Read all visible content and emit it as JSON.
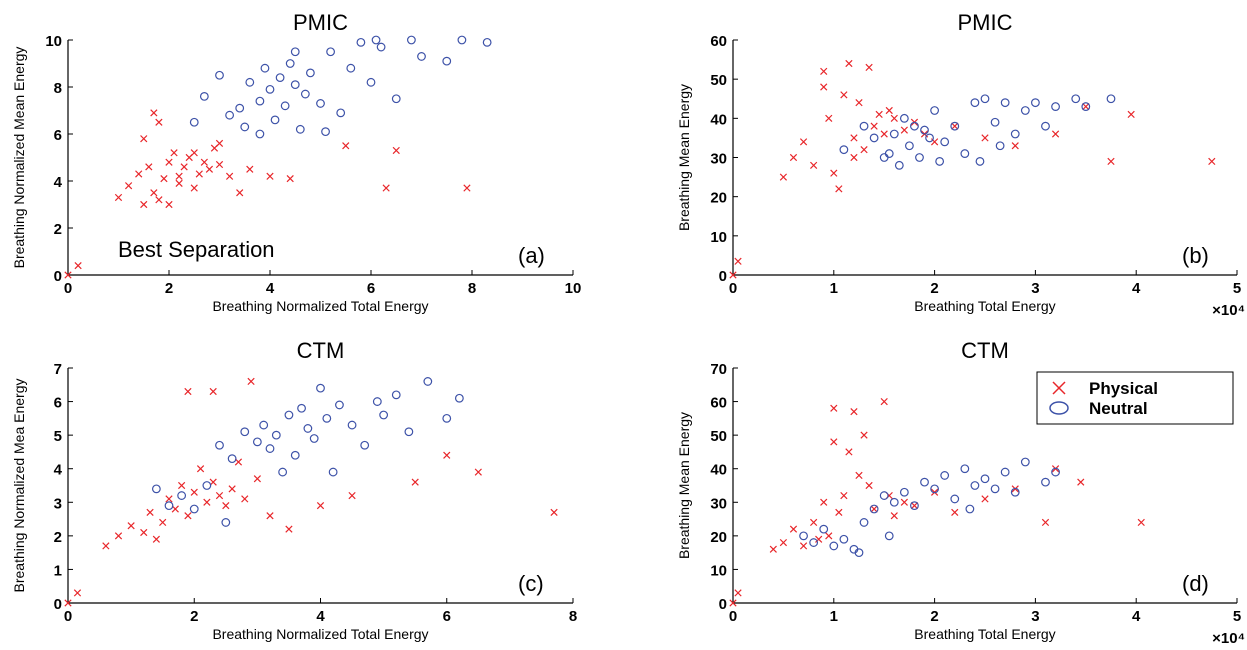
{
  "chart_data": [
    {
      "type": "scatter",
      "title": "PMIC",
      "xlabel": "Breathing Normalized Total Energy",
      "ylabel": "Breathing Normalized Mean Energy",
      "panel_label": "(a)",
      "annotation": "Best Separation",
      "xlim": [
        0,
        10
      ],
      "ylim": [
        0,
        10
      ],
      "xticks": [
        0,
        2,
        4,
        6,
        8,
        10
      ],
      "yticks": [
        0,
        2,
        4,
        6,
        8,
        10
      ],
      "series": [
        {
          "marker": "x",
          "color": "#e8262a",
          "x": [
            0,
            0.2,
            1,
            1.2,
            1.4,
            1.5,
            1.6,
            1.7,
            1.8,
            1.9,
            2,
            2.1,
            2.2,
            2.3,
            2.4,
            2.5,
            2.6,
            2.7,
            2.8,
            2.9,
            3,
            3.2,
            3.4,
            1.5,
            1.8,
            2.2,
            2.5,
            3,
            3.6,
            4,
            4.4,
            5.5,
            6.3,
            6.5,
            7.9,
            1.7,
            2.0
          ],
          "values": [
            0,
            0.4,
            3.3,
            3.8,
            4.3,
            3,
            4.6,
            3.5,
            6.5,
            4.1,
            4.8,
            5.2,
            3.9,
            4.6,
            5,
            5.2,
            4.3,
            4.8,
            4.5,
            5.4,
            4.7,
            4.2,
            3.5,
            5.8,
            3.2,
            4.2,
            3.7,
            5.6,
            4.5,
            4.2,
            4.1,
            5.5,
            3.7,
            5.3,
            3.7,
            6.9,
            3.0
          ]
        },
        {
          "marker": "o",
          "color": "#3d52a8",
          "x": [
            2.5,
            2.7,
            3,
            3.2,
            3.4,
            3.5,
            3.6,
            3.8,
            3.9,
            4,
            4.1,
            4.2,
            4.3,
            4.4,
            4.5,
            4.6,
            4.7,
            4.8,
            5,
            5.2,
            5.4,
            5.6,
            5.8,
            6,
            6.2,
            6.5,
            6.8,
            7,
            7.5,
            7.8,
            8.3,
            4.5,
            3.8,
            5.1,
            6.1
          ],
          "values": [
            6.5,
            7.6,
            8.5,
            6.8,
            7.1,
            6.3,
            8.2,
            7.4,
            8.8,
            7.9,
            6.6,
            8.4,
            7.2,
            9,
            8.1,
            6.2,
            7.7,
            8.6,
            7.3,
            9.5,
            6.9,
            8.8,
            9.9,
            8.2,
            9.7,
            7.5,
            10,
            9.3,
            9.1,
            10,
            9.9,
            9.5,
            6,
            6.1,
            10
          ]
        }
      ]
    },
    {
      "type": "scatter",
      "title": "PMIC",
      "xlabel": "Breathing Total Energy",
      "ylabel": "Breathing Mean Energy",
      "panel_label": "(b)",
      "x_scale_label": "×10⁴",
      "xlim": [
        0,
        5
      ],
      "ylim": [
        0,
        60
      ],
      "xticks": [
        0,
        1,
        2,
        3,
        4,
        5
      ],
      "yticks": [
        0,
        10,
        20,
        30,
        40,
        50,
        60
      ],
      "series": [
        {
          "marker": "x",
          "color": "#e8262a",
          "x": [
            0,
            0.05,
            0.5,
            0.6,
            0.7,
            0.8,
            0.9,
            0.95,
            1,
            1.05,
            1.1,
            1.15,
            1.2,
            1.25,
            1.3,
            1.35,
            1.4,
            1.45,
            1.5,
            1.55,
            1.6,
            1.7,
            1.8,
            1.9,
            2,
            2.2,
            2.5,
            2.8,
            3.2,
            3.5,
            3.75,
            3.95,
            4.75,
            1.2,
            0.9
          ],
          "values": [
            0,
            3.5,
            25,
            30,
            34,
            28,
            52,
            40,
            26,
            22,
            46,
            54,
            35,
            44,
            32,
            53,
            38,
            41,
            36,
            42,
            40,
            37,
            39,
            36,
            34,
            38,
            35,
            33,
            36,
            43,
            29,
            41,
            29,
            30,
            48
          ]
        },
        {
          "marker": "o",
          "color": "#3d52a8",
          "x": [
            1.1,
            1.3,
            1.4,
            1.5,
            1.6,
            1.65,
            1.7,
            1.75,
            1.8,
            1.85,
            1.9,
            1.95,
            2,
            2.05,
            2.1,
            2.2,
            2.3,
            2.4,
            2.5,
            2.6,
            2.7,
            2.8,
            2.9,
            3,
            3.1,
            3.2,
            3.4,
            3.5,
            3.75,
            2.45,
            2.65,
            1.55
          ],
          "values": [
            32,
            38,
            35,
            30,
            36,
            28,
            40,
            33,
            38,
            30,
            37,
            35,
            42,
            29,
            34,
            38,
            31,
            44,
            45,
            39,
            44,
            36,
            42,
            44,
            38,
            43,
            45,
            43,
            45,
            29,
            33,
            31
          ]
        }
      ]
    },
    {
      "type": "scatter",
      "title": "CTM",
      "xlabel": "Breathing Normalized Total Energy",
      "ylabel": "Breathing Normalized Mea Energy",
      "panel_label": "(c)",
      "xlim": [
        0,
        8
      ],
      "ylim": [
        0,
        7
      ],
      "xticks": [
        0,
        2,
        4,
        6,
        8
      ],
      "yticks": [
        0,
        1,
        2,
        3,
        4,
        5,
        6,
        7
      ],
      "series": [
        {
          "marker": "x",
          "color": "#e8262a",
          "x": [
            0,
            0.15,
            0.6,
            0.8,
            1,
            1.2,
            1.3,
            1.4,
            1.5,
            1.6,
            1.7,
            1.8,
            1.9,
            2,
            2.1,
            2.2,
            2.3,
            2.4,
            2.5,
            2.6,
            2.7,
            2.8,
            3,
            3.2,
            3.5,
            4,
            4.5,
            5.5,
            6,
            6.5,
            7.7,
            1.9,
            2.3,
            2.9
          ],
          "values": [
            0,
            0.3,
            1.7,
            2,
            2.3,
            2.1,
            2.7,
            1.9,
            2.4,
            3.1,
            2.8,
            3.5,
            2.6,
            3.3,
            4,
            3,
            3.6,
            3.2,
            2.9,
            3.4,
            4.2,
            3.1,
            3.7,
            2.6,
            2.2,
            2.9,
            3.2,
            3.6,
            4.4,
            3.9,
            2.7,
            6.3,
            6.3,
            6.6
          ]
        },
        {
          "marker": "o",
          "color": "#3d52a8",
          "x": [
            1.4,
            1.6,
            1.8,
            2,
            2.2,
            2.4,
            2.6,
            2.8,
            3,
            3.1,
            3.2,
            3.3,
            3.4,
            3.5,
            3.6,
            3.7,
            3.8,
            3.9,
            4,
            4.1,
            4.2,
            4.3,
            4.5,
            4.7,
            4.9,
            5,
            5.2,
            5.4,
            5.7,
            6,
            6.2,
            2.5
          ],
          "values": [
            3.4,
            2.9,
            3.2,
            2.8,
            3.5,
            4.7,
            4.3,
            5.1,
            4.8,
            5.3,
            4.6,
            5,
            3.9,
            5.6,
            4.4,
            5.8,
            5.2,
            4.9,
            6.4,
            5.5,
            3.9,
            5.9,
            5.3,
            4.7,
            6,
            5.6,
            6.2,
            5.1,
            6.6,
            5.5,
            6.1,
            2.4
          ]
        }
      ]
    },
    {
      "type": "scatter",
      "title": "CTM",
      "xlabel": "Breathing Total Energy",
      "ylabel": "Breathing Mean Energy",
      "panel_label": "(d)",
      "x_scale_label": "×10⁴",
      "legend": "upper right",
      "xlim": [
        0,
        5
      ],
      "ylim": [
        0,
        70
      ],
      "xticks": [
        0,
        1,
        2,
        3,
        4,
        5
      ],
      "yticks": [
        0,
        10,
        20,
        30,
        40,
        50,
        60,
        70
      ],
      "series": [
        {
          "name": "Physical",
          "marker": "x",
          "color": "#e8262a",
          "x": [
            0,
            0.05,
            0.4,
            0.5,
            0.6,
            0.7,
            0.8,
            0.9,
            0.95,
            1,
            1.05,
            1.1,
            1.15,
            1.2,
            1.25,
            1.3,
            1.35,
            1.4,
            1.5,
            1.6,
            1.7,
            1.8,
            2,
            2.2,
            2.5,
            2.8,
            3.1,
            3.2,
            3.45,
            4.05,
            1.55,
            1.0,
            0.85
          ],
          "values": [
            0,
            3,
            16,
            18,
            22,
            17,
            24,
            30,
            20,
            58,
            27,
            32,
            45,
            57,
            38,
            50,
            35,
            28,
            60,
            26,
            30,
            29,
            33,
            27,
            31,
            34,
            24,
            40,
            36,
            24,
            32,
            48,
            19
          ]
        },
        {
          "name": "Neutral",
          "marker": "o",
          "color": "#3d52a8",
          "x": [
            0.7,
            0.8,
            0.9,
            1,
            1.1,
            1.2,
            1.3,
            1.4,
            1.5,
            1.6,
            1.7,
            1.8,
            1.9,
            2,
            2.1,
            2.2,
            2.3,
            2.4,
            2.5,
            2.6,
            2.7,
            2.8,
            2.9,
            3.1,
            3.2,
            1.25,
            1.55,
            2.35
          ],
          "values": [
            20,
            18,
            22,
            17,
            19,
            16,
            24,
            28,
            32,
            30,
            33,
            29,
            36,
            34,
            38,
            31,
            40,
            35,
            37,
            34,
            39,
            33,
            42,
            36,
            39,
            15,
            20,
            28
          ]
        }
      ]
    }
  ]
}
